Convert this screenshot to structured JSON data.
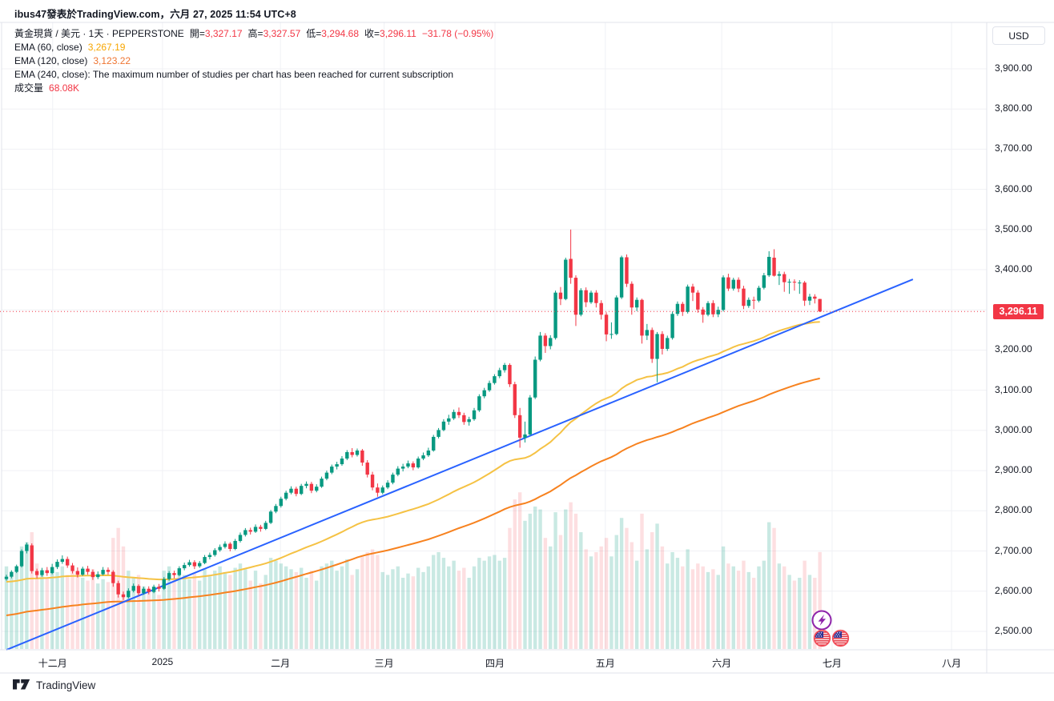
{
  "header": {
    "caption": "ibus47發表於TradingView.com，六月 27, 2025 11:54 UTC+8"
  },
  "legend": {
    "symbol": {
      "title": "黃金現貨 / 美元 · 1天 · PEPPERSTONE",
      "fields": [
        {
          "label": "開=",
          "value": "3,327.17"
        },
        {
          "label": "高=",
          "value": "3,327.57"
        },
        {
          "label": "低=",
          "value": "3,294.68"
        },
        {
          "label": "收=",
          "value": "3,296.11"
        }
      ],
      "change": "−31.78 (−0.95%)"
    },
    "ema60": {
      "label": "EMA (60, close)",
      "value": "3,267.19"
    },
    "ema120": {
      "label": "EMA (120, close)",
      "value": "3,123.22"
    },
    "ema240_message": "EMA (240, close): The maximum number of studies per chart has been reached for current subscription",
    "volume": {
      "label": "成交量",
      "value": "68.08K"
    }
  },
  "price_axis": {
    "currency": "USD",
    "last_price_label": "3,296.11"
  },
  "footer": {
    "brand": "TradingView"
  },
  "colors": {
    "up": "#089981",
    "down": "#F23645",
    "vol_up": "rgba(8,153,129,0.22)",
    "vol_down": "rgba(242,54,69,0.16)",
    "grid": "#F0F1F5",
    "frame": "#E0E3EB",
    "axis_text": "#131722",
    "accent_red": "#F23645",
    "ema60_line": "#F5C244",
    "ema120_line": "#F7821F",
    "trend_blue": "#2962FF",
    "boost_purple": "#8E24AA",
    "flag_ring": "#F24B57"
  },
  "chart_data": {
    "type": "candlestick",
    "symbol": "黃金現貨 / 美元",
    "interval": "1天",
    "exchange": "PEPPERSTONE",
    "last": {
      "open": 3327.17,
      "high": 3327.57,
      "low": 3294.68,
      "close": 3296.11,
      "change": "−31.78 (−0.95%)",
      "volume_k": 68.08
    },
    "ema60_last": 3267.19,
    "ema120_last": 3123.22,
    "last_price": 3296.11,
    "price_gridlines": [
      3900,
      3800,
      3700,
      3600,
      3500,
      3400,
      3300,
      3200,
      3100,
      3000,
      2900,
      2800,
      2700,
      2600,
      2500
    ],
    "price_ticks": [
      {
        "label": "3,900.00",
        "price": 3900
      },
      {
        "label": "3,800.00",
        "price": 3800
      },
      {
        "label": "3,700.00",
        "price": 3700
      },
      {
        "label": "3,600.00",
        "price": 3600
      },
      {
        "label": "3,500.00",
        "price": 3500
      },
      {
        "label": "3,400.00",
        "price": 3400
      },
      {
        "label": "3,200.00",
        "price": 3200
      },
      {
        "label": "3,100.00",
        "price": 3100
      },
      {
        "label": "3,000.00",
        "price": 3000
      },
      {
        "label": "2,900.00",
        "price": 2900
      },
      {
        "label": "2,800.00",
        "price": 2800
      },
      {
        "label": "2,700.00",
        "price": 2700
      },
      {
        "label": "2,600.00",
        "price": 2600
      },
      {
        "label": "2,500.00",
        "price": 2500
      }
    ],
    "month_ticks": [
      {
        "label": "十二月",
        "index": 9.1
      },
      {
        "label": "2025",
        "index": 30.7
      },
      {
        "label": "二月",
        "index": 53.9
      },
      {
        "label": "三月",
        "index": 74.3
      },
      {
        "label": "四月",
        "index": 96.1
      },
      {
        "label": "五月",
        "index": 117.8
      },
      {
        "label": "六月",
        "index": 140.7
      },
      {
        "label": "七月",
        "index": 162.4
      },
      {
        "label": "八月",
        "index": 185.9
      }
    ],
    "overlays": {
      "ema60": {
        "period": 60,
        "seed": 2623
      },
      "ema120": {
        "period": 120,
        "seed": 2538
      },
      "trendline": {
        "from": {
          "index": 0,
          "price": 2454
        },
        "to": {
          "index": 178.3,
          "price": 3376
        }
      }
    },
    "candles": [
      [
        2630,
        2641,
        2626,
        2636,
        58
      ],
      [
        2636,
        2652,
        2632,
        2648,
        52
      ],
      [
        2648,
        2666,
        2645,
        2662,
        55
      ],
      [
        2662,
        2704,
        2659,
        2700,
        72
      ],
      [
        2700,
        2721,
        2694,
        2716,
        75
      ],
      [
        2714,
        2719,
        2644,
        2650,
        82
      ],
      [
        2650,
        2656,
        2632,
        2640,
        60
      ],
      [
        2640,
        2658,
        2636,
        2652,
        54
      ],
      [
        2652,
        2660,
        2638,
        2645,
        50
      ],
      [
        2645,
        2668,
        2642,
        2660,
        56
      ],
      [
        2660,
        2679,
        2655,
        2673,
        54
      ],
      [
        2673,
        2689,
        2668,
        2680,
        58
      ],
      [
        2680,
        2686,
        2658,
        2664,
        52
      ],
      [
        2664,
        2670,
        2644,
        2650,
        57
      ],
      [
        2650,
        2659,
        2634,
        2641,
        55
      ],
      [
        2641,
        2661,
        2638,
        2656,
        50
      ],
      [
        2656,
        2663,
        2641,
        2648,
        48
      ],
      [
        2648,
        2654,
        2628,
        2635,
        56
      ],
      [
        2635,
        2649,
        2630,
        2642,
        46
      ],
      [
        2642,
        2660,
        2639,
        2653,
        49
      ],
      [
        2653,
        2659,
        2641,
        2648,
        47
      ],
      [
        2648,
        2652,
        2611,
        2620,
        78
      ],
      [
        2620,
        2626,
        2584,
        2592,
        85
      ],
      [
        2592,
        2599,
        2578,
        2585,
        72
      ],
      [
        2585,
        2607,
        2582,
        2601,
        55
      ],
      [
        2601,
        2619,
        2597,
        2613,
        50
      ],
      [
        2613,
        2617,
        2589,
        2595,
        52
      ],
      [
        2595,
        2611,
        2591,
        2606,
        44
      ],
      [
        2606,
        2612,
        2592,
        2598,
        40
      ],
      [
        2598,
        2616,
        2595,
        2611,
        42
      ],
      [
        2611,
        2618,
        2599,
        2606,
        38
      ],
      [
        2606,
        2635,
        2603,
        2630,
        55
      ],
      [
        2630,
        2650,
        2626,
        2645,
        58
      ],
      [
        2645,
        2651,
        2632,
        2640,
        50
      ],
      [
        2640,
        2662,
        2637,
        2657,
        54
      ],
      [
        2657,
        2671,
        2652,
        2665,
        52
      ],
      [
        2665,
        2678,
        2661,
        2672,
        49
      ],
      [
        2672,
        2677,
        2655,
        2662,
        53
      ],
      [
        2662,
        2675,
        2658,
        2670,
        48
      ],
      [
        2670,
        2690,
        2667,
        2685,
        56
      ],
      [
        2685,
        2696,
        2679,
        2690,
        51
      ],
      [
        2690,
        2707,
        2686,
        2702,
        55
      ],
      [
        2702,
        2716,
        2698,
        2710,
        58
      ],
      [
        2710,
        2724,
        2706,
        2718,
        54
      ],
      [
        2718,
        2722,
        2699,
        2705,
        52
      ],
      [
        2705,
        2730,
        2702,
        2725,
        57
      ],
      [
        2725,
        2746,
        2721,
        2740,
        60
      ],
      [
        2740,
        2757,
        2736,
        2752,
        56
      ],
      [
        2752,
        2758,
        2741,
        2748,
        48
      ],
      [
        2748,
        2766,
        2745,
        2760,
        55
      ],
      [
        2760,
        2765,
        2748,
        2755,
        46
      ],
      [
        2755,
        2775,
        2752,
        2770,
        52
      ],
      [
        2770,
        2802,
        2767,
        2798,
        64
      ],
      [
        2798,
        2817,
        2794,
        2812,
        62
      ],
      [
        2812,
        2835,
        2808,
        2830,
        60
      ],
      [
        2830,
        2850,
        2826,
        2845,
        58
      ],
      [
        2845,
        2861,
        2841,
        2855,
        56
      ],
      [
        2855,
        2860,
        2836,
        2842,
        54
      ],
      [
        2842,
        2867,
        2839,
        2862,
        57
      ],
      [
        2862,
        2873,
        2856,
        2867,
        50
      ],
      [
        2867,
        2872,
        2844,
        2850,
        55
      ],
      [
        2850,
        2866,
        2846,
        2860,
        48
      ],
      [
        2860,
        2885,
        2857,
        2880,
        58
      ],
      [
        2880,
        2900,
        2876,
        2895,
        60
      ],
      [
        2895,
        2915,
        2891,
        2910,
        62
      ],
      [
        2910,
        2922,
        2903,
        2916,
        55
      ],
      [
        2916,
        2936,
        2912,
        2930,
        58
      ],
      [
        2930,
        2951,
        2926,
        2946,
        63
      ],
      [
        2946,
        2956,
        2933,
        2939,
        52
      ],
      [
        2939,
        2955,
        2935,
        2950,
        56
      ],
      [
        2950,
        2954,
        2912,
        2920,
        65
      ],
      [
        2920,
        2926,
        2883,
        2890,
        68
      ],
      [
        2890,
        2897,
        2851,
        2858,
        70
      ],
      [
        2858,
        2868,
        2835,
        2845,
        66
      ],
      [
        2845,
        2863,
        2841,
        2858,
        54
      ],
      [
        2858,
        2876,
        2854,
        2870,
        52
      ],
      [
        2870,
        2895,
        2866,
        2890,
        56
      ],
      [
        2890,
        2911,
        2886,
        2905,
        58
      ],
      [
        2905,
        2917,
        2898,
        2910,
        50
      ],
      [
        2910,
        2925,
        2906,
        2918,
        53
      ],
      [
        2918,
        2923,
        2901,
        2908,
        51
      ],
      [
        2908,
        2935,
        2905,
        2930,
        57
      ],
      [
        2930,
        2945,
        2926,
        2938,
        54
      ],
      [
        2938,
        2957,
        2934,
        2950,
        58
      ],
      [
        2950,
        2989,
        2947,
        2984,
        66
      ],
      [
        2984,
        3006,
        2980,
        3001,
        68
      ],
      [
        3001,
        3028,
        2998,
        3022,
        64
      ],
      [
        3022,
        3039,
        3014,
        3030,
        58
      ],
      [
        3030,
        3052,
        3026,
        3046,
        62
      ],
      [
        3046,
        3057,
        3031,
        3038,
        55
      ],
      [
        3038,
        3044,
        3014,
        3021,
        57
      ],
      [
        3021,
        3034,
        3012,
        3028,
        50
      ],
      [
        3028,
        3056,
        3024,
        3050,
        58
      ],
      [
        3050,
        3090,
        3046,
        3085,
        64
      ],
      [
        3085,
        3106,
        3080,
        3100,
        62
      ],
      [
        3100,
        3124,
        3096,
        3118,
        65
      ],
      [
        3118,
        3140,
        3114,
        3135,
        66
      ],
      [
        3135,
        3156,
        3130,
        3150,
        62
      ],
      [
        3150,
        3168,
        3144,
        3163,
        64
      ],
      [
        3163,
        3167,
        3108,
        3115,
        85
      ],
      [
        3115,
        3121,
        3031,
        3038,
        105
      ],
      [
        3038,
        3056,
        2957,
        2982,
        110
      ],
      [
        2982,
        3022,
        2970,
        2990,
        90
      ],
      [
        2990,
        3088,
        2987,
        3082,
        95
      ],
      [
        3082,
        3184,
        3078,
        3176,
        100
      ],
      [
        3176,
        3245,
        3172,
        3236,
        98
      ],
      [
        3236,
        3242,
        3193,
        3210,
        78
      ],
      [
        3210,
        3237,
        3202,
        3230,
        72
      ],
      [
        3230,
        3348,
        3226,
        3343,
        96
      ],
      [
        3343,
        3357,
        3312,
        3327,
        80
      ],
      [
        3327,
        3430,
        3324,
        3425,
        98
      ],
      [
        3427,
        3500,
        3365,
        3380,
        103
      ],
      [
        3380,
        3386,
        3260,
        3288,
        95
      ],
      [
        3288,
        3354,
        3284,
        3349,
        82
      ],
      [
        3349,
        3356,
        3307,
        3319,
        70
      ],
      [
        3319,
        3348,
        3315,
        3343,
        65
      ],
      [
        3343,
        3349,
        3306,
        3317,
        68
      ],
      [
        3317,
        3324,
        3276,
        3288,
        72
      ],
      [
        3288,
        3294,
        3222,
        3239,
        78
      ],
      [
        3239,
        3269,
        3228,
        3240,
        65
      ],
      [
        3240,
        3336,
        3237,
        3331,
        80
      ],
      [
        3331,
        3435,
        3327,
        3431,
        92
      ],
      [
        3431,
        3438,
        3357,
        3365,
        85
      ],
      [
        3365,
        3371,
        3288,
        3306,
        75
      ],
      [
        3306,
        3331,
        3297,
        3325,
        62
      ],
      [
        3325,
        3328,
        3216,
        3236,
        95
      ],
      [
        3236,
        3265,
        3225,
        3250,
        70
      ],
      [
        3250,
        3256,
        3168,
        3178,
        82
      ],
      [
        3178,
        3245,
        3120,
        3240,
        88
      ],
      [
        3240,
        3247,
        3189,
        3203,
        72
      ],
      [
        3203,
        3236,
        3198,
        3230,
        60
      ],
      [
        3230,
        3296,
        3226,
        3290,
        68
      ],
      [
        3290,
        3321,
        3285,
        3315,
        64
      ],
      [
        3315,
        3320,
        3285,
        3295,
        58
      ],
      [
        3295,
        3363,
        3291,
        3358,
        70
      ],
      [
        3358,
        3365,
        3322,
        3343,
        56
      ],
      [
        3343,
        3349,
        3293,
        3301,
        60
      ],
      [
        3301,
        3307,
        3268,
        3288,
        58
      ],
      [
        3288,
        3322,
        3284,
        3317,
        54
      ],
      [
        3317,
        3324,
        3282,
        3289,
        56
      ],
      [
        3289,
        3308,
        3282,
        3300,
        52
      ],
      [
        3300,
        3386,
        3296,
        3381,
        72
      ],
      [
        3381,
        3390,
        3347,
        3353,
        60
      ],
      [
        3353,
        3380,
        3348,
        3375,
        58
      ],
      [
        3375,
        3381,
        3344,
        3353,
        55
      ],
      [
        3353,
        3360,
        3302,
        3310,
        62
      ],
      [
        3310,
        3331,
        3305,
        3325,
        54
      ],
      [
        3325,
        3333,
        3302,
        3323,
        50
      ],
      [
        3323,
        3360,
        3319,
        3355,
        58
      ],
      [
        3355,
        3392,
        3351,
        3386,
        62
      ],
      [
        3386,
        3446,
        3382,
        3432,
        89
      ],
      [
        3430,
        3451,
        3383,
        3385,
        85
      ],
      [
        3385,
        3396,
        3362,
        3389,
        60
      ],
      [
        3389,
        3395,
        3345,
        3369,
        58
      ],
      [
        3369,
        3377,
        3340,
        3370,
        52
      ],
      [
        3370,
        3376,
        3348,
        3368,
        48
      ],
      [
        3368,
        3374,
        3340,
        3368,
        50
      ],
      [
        3368,
        3372,
        3310,
        3323,
        62
      ],
      [
        3323,
        3340,
        3312,
        3333,
        52
      ],
      [
        3333,
        3339,
        3316,
        3328,
        50
      ],
      [
        3327.17,
        3327.57,
        3294.68,
        3296.11,
        68.08
      ]
    ]
  }
}
